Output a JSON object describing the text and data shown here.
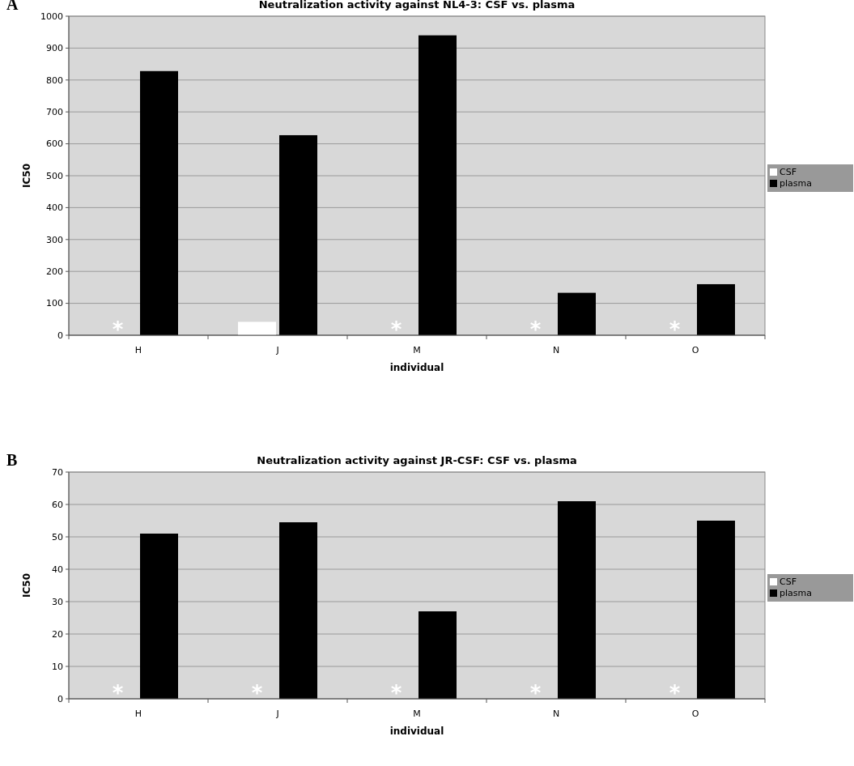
{
  "chart_data": [
    {
      "type": "bar",
      "title": "Neutralization activity against NL4-3: CSF vs. plasma",
      "xlabel": "individual",
      "ylabel": "IC50",
      "categories": [
        "H",
        "J",
        "M",
        "N",
        "O"
      ],
      "series": [
        {
          "name": "CSF",
          "color": "#ffffff",
          "values": [
            0,
            42,
            0,
            0,
            0
          ]
        },
        {
          "name": "plasma",
          "color": "#000000",
          "values": [
            828,
            627,
            940,
            133,
            160
          ]
        }
      ],
      "ylim": [
        0,
        1000
      ],
      "yticks": [
        0,
        100,
        200,
        300,
        400,
        500,
        600,
        700,
        800,
        900,
        1000
      ],
      "grid": "y",
      "legend": "right",
      "annotations": [
        "A",
        {
          "text": "*",
          "x": "H",
          "y": 0
        },
        {
          "text": "*",
          "x": "M",
          "y": 0
        },
        {
          "text": "*",
          "x": "N",
          "y": 0
        },
        {
          "text": "*",
          "x": "O",
          "y": 0
        }
      ]
    },
    {
      "type": "bar",
      "title": "Neutralization activity against JR-CSF: CSF vs. plasma",
      "xlabel": "individual",
      "ylabel": "IC50",
      "categories": [
        "H",
        "J",
        "M",
        "N",
        "O"
      ],
      "series": [
        {
          "name": "CSF",
          "color": "#ffffff",
          "values": [
            0,
            0,
            0,
            0,
            0
          ]
        },
        {
          "name": "plasma",
          "color": "#000000",
          "values": [
            51,
            54.5,
            27,
            61,
            55
          ]
        }
      ],
      "ylim": [
        0,
        70
      ],
      "yticks": [
        0,
        10,
        20,
        30,
        40,
        50,
        60,
        70
      ],
      "grid": "y",
      "legend": "right",
      "annotations": [
        "B",
        {
          "text": "*",
          "x": "H",
          "y": 0
        },
        {
          "text": "*",
          "x": "J",
          "y": 0
        },
        {
          "text": "*",
          "x": "M",
          "y": 0
        },
        {
          "text": "*",
          "x": "N",
          "y": 0
        },
        {
          "text": "*",
          "x": "O",
          "y": 0
        }
      ]
    }
  ]
}
